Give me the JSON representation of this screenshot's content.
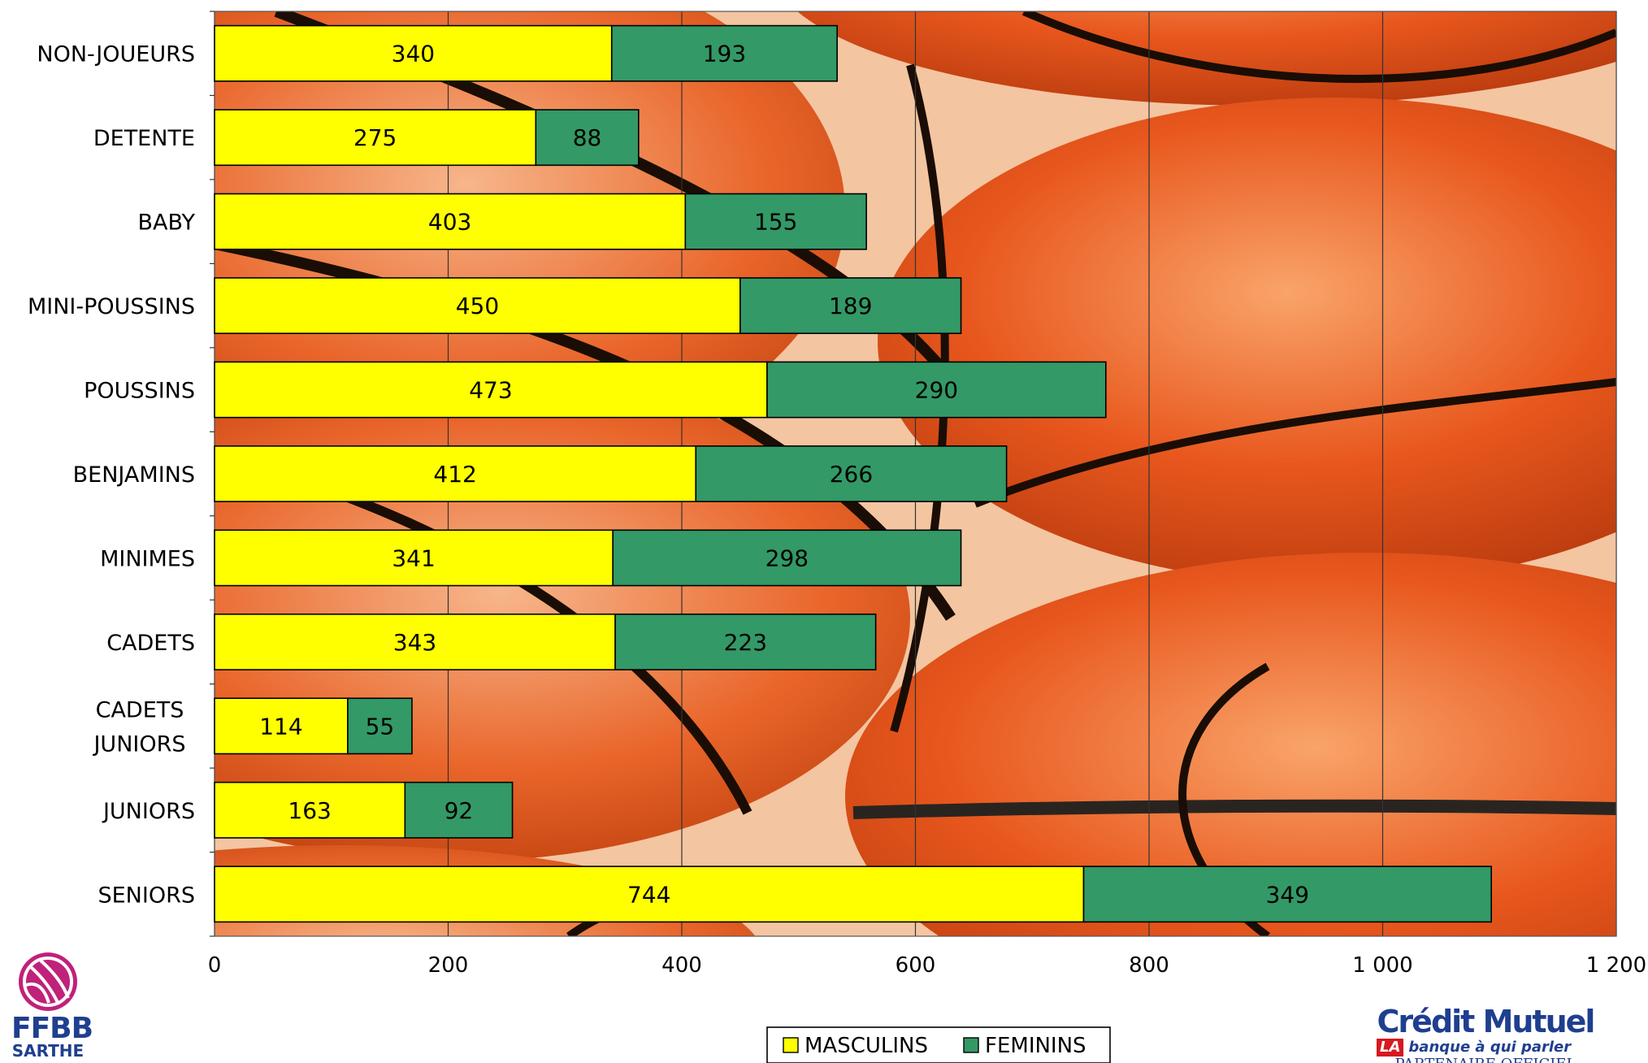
{
  "chart_data": {
    "type": "bar",
    "orientation": "horizontal",
    "stacked": true,
    "categories": [
      "NON-JOUEURS",
      "DETENTE",
      "BABY",
      "MINI-POUSSINS",
      "POUSSINS",
      "BENJAMINS",
      "MINIMES",
      "CADETS",
      "CADETS JUNIORS",
      "JUNIORS",
      "SENIORS"
    ],
    "series": [
      {
        "name": "MASCULINS",
        "color": "#ffff00",
        "values": [
          340,
          275,
          403,
          450,
          473,
          412,
          341,
          343,
          114,
          163,
          744
        ]
      },
      {
        "name": "FEMININS",
        "color": "#339966",
        "values": [
          193,
          88,
          155,
          189,
          290,
          266,
          298,
          223,
          55,
          92,
          349
        ]
      }
    ],
    "xlim": [
      0,
      1200
    ],
    "x_ticks": [
      "0",
      "200",
      "400",
      "600",
      "800",
      "1 000",
      "1 200"
    ],
    "grid": true,
    "legend_position": "bottom",
    "title": "",
    "xlabel": "",
    "ylabel": ""
  },
  "logos": {
    "left": {
      "name": "FFBB",
      "sub": "SARTHE",
      "icon": "basketball-logo-icon"
    },
    "right": {
      "name": "Crédit Mutuel",
      "tag_la": "LA",
      "tagline": "banque à qui parler",
      "sub": "PARTENAIRE OFFICIEL",
      "icon": "credit-mutuel-logo-icon"
    }
  }
}
